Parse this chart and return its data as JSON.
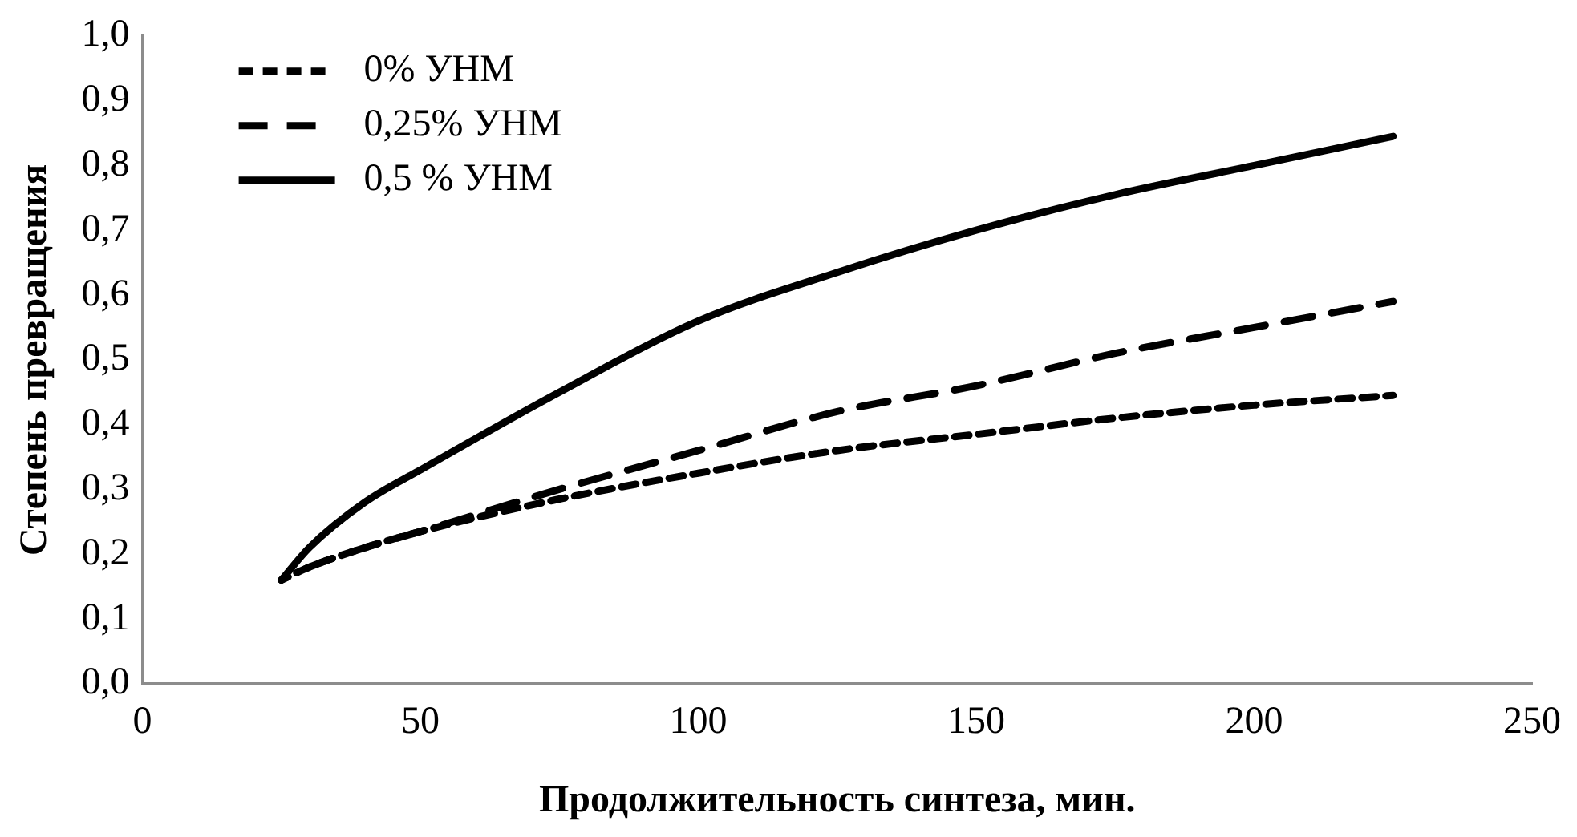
{
  "chart_data": {
    "type": "line",
    "xlabel": "Продолжительность синтеза, мин.",
    "ylabel": "Степень превращения",
    "x": [
      25,
      30,
      40,
      50,
      75,
      100,
      125,
      150,
      175,
      200,
      225
    ],
    "series": [
      {
        "name": "0% УНМ",
        "color": "#000000",
        "line_style": "dotted",
        "values": [
          0.16,
          0.18,
          0.21,
          0.235,
          0.285,
          0.325,
          0.36,
          0.385,
          0.41,
          0.43,
          0.445
        ]
      },
      {
        "name": "0,25% УНМ",
        "color": "#000000",
        "line_style": "dashed",
        "values": [
          0.16,
          0.18,
          0.21,
          0.235,
          0.3,
          0.36,
          0.42,
          0.46,
          0.51,
          0.55,
          0.59
        ]
      },
      {
        "name": "0,5 % УНМ",
        "color": "#000000",
        "line_style": "solid",
        "values": [
          0.16,
          0.21,
          0.28,
          0.33,
          0.45,
          0.56,
          0.635,
          0.7,
          0.755,
          0.8,
          0.845
        ]
      }
    ],
    "xlim": [
      0,
      250
    ],
    "xticks": [
      0,
      50,
      100,
      150,
      200,
      250
    ],
    "ylim": [
      0,
      1
    ],
    "yticks": [
      {
        "value": 0,
        "label": "0,0"
      },
      {
        "value": 0.1,
        "label": "0,1"
      },
      {
        "value": 0.2,
        "label": "0,2"
      },
      {
        "value": 0.3,
        "label": "0,3"
      },
      {
        "value": 0.4,
        "label": "0,4"
      },
      {
        "value": 0.5,
        "label": "0,5"
      },
      {
        "value": 0.6,
        "label": "0,6"
      },
      {
        "value": 0.7,
        "label": "0,7"
      },
      {
        "value": 0.8,
        "label": "0,8"
      },
      {
        "value": 0.9,
        "label": "0,9"
      },
      {
        "value": 1,
        "label": "1,0"
      }
    ],
    "grid": false,
    "legend": "top left",
    "marker": "none"
  }
}
